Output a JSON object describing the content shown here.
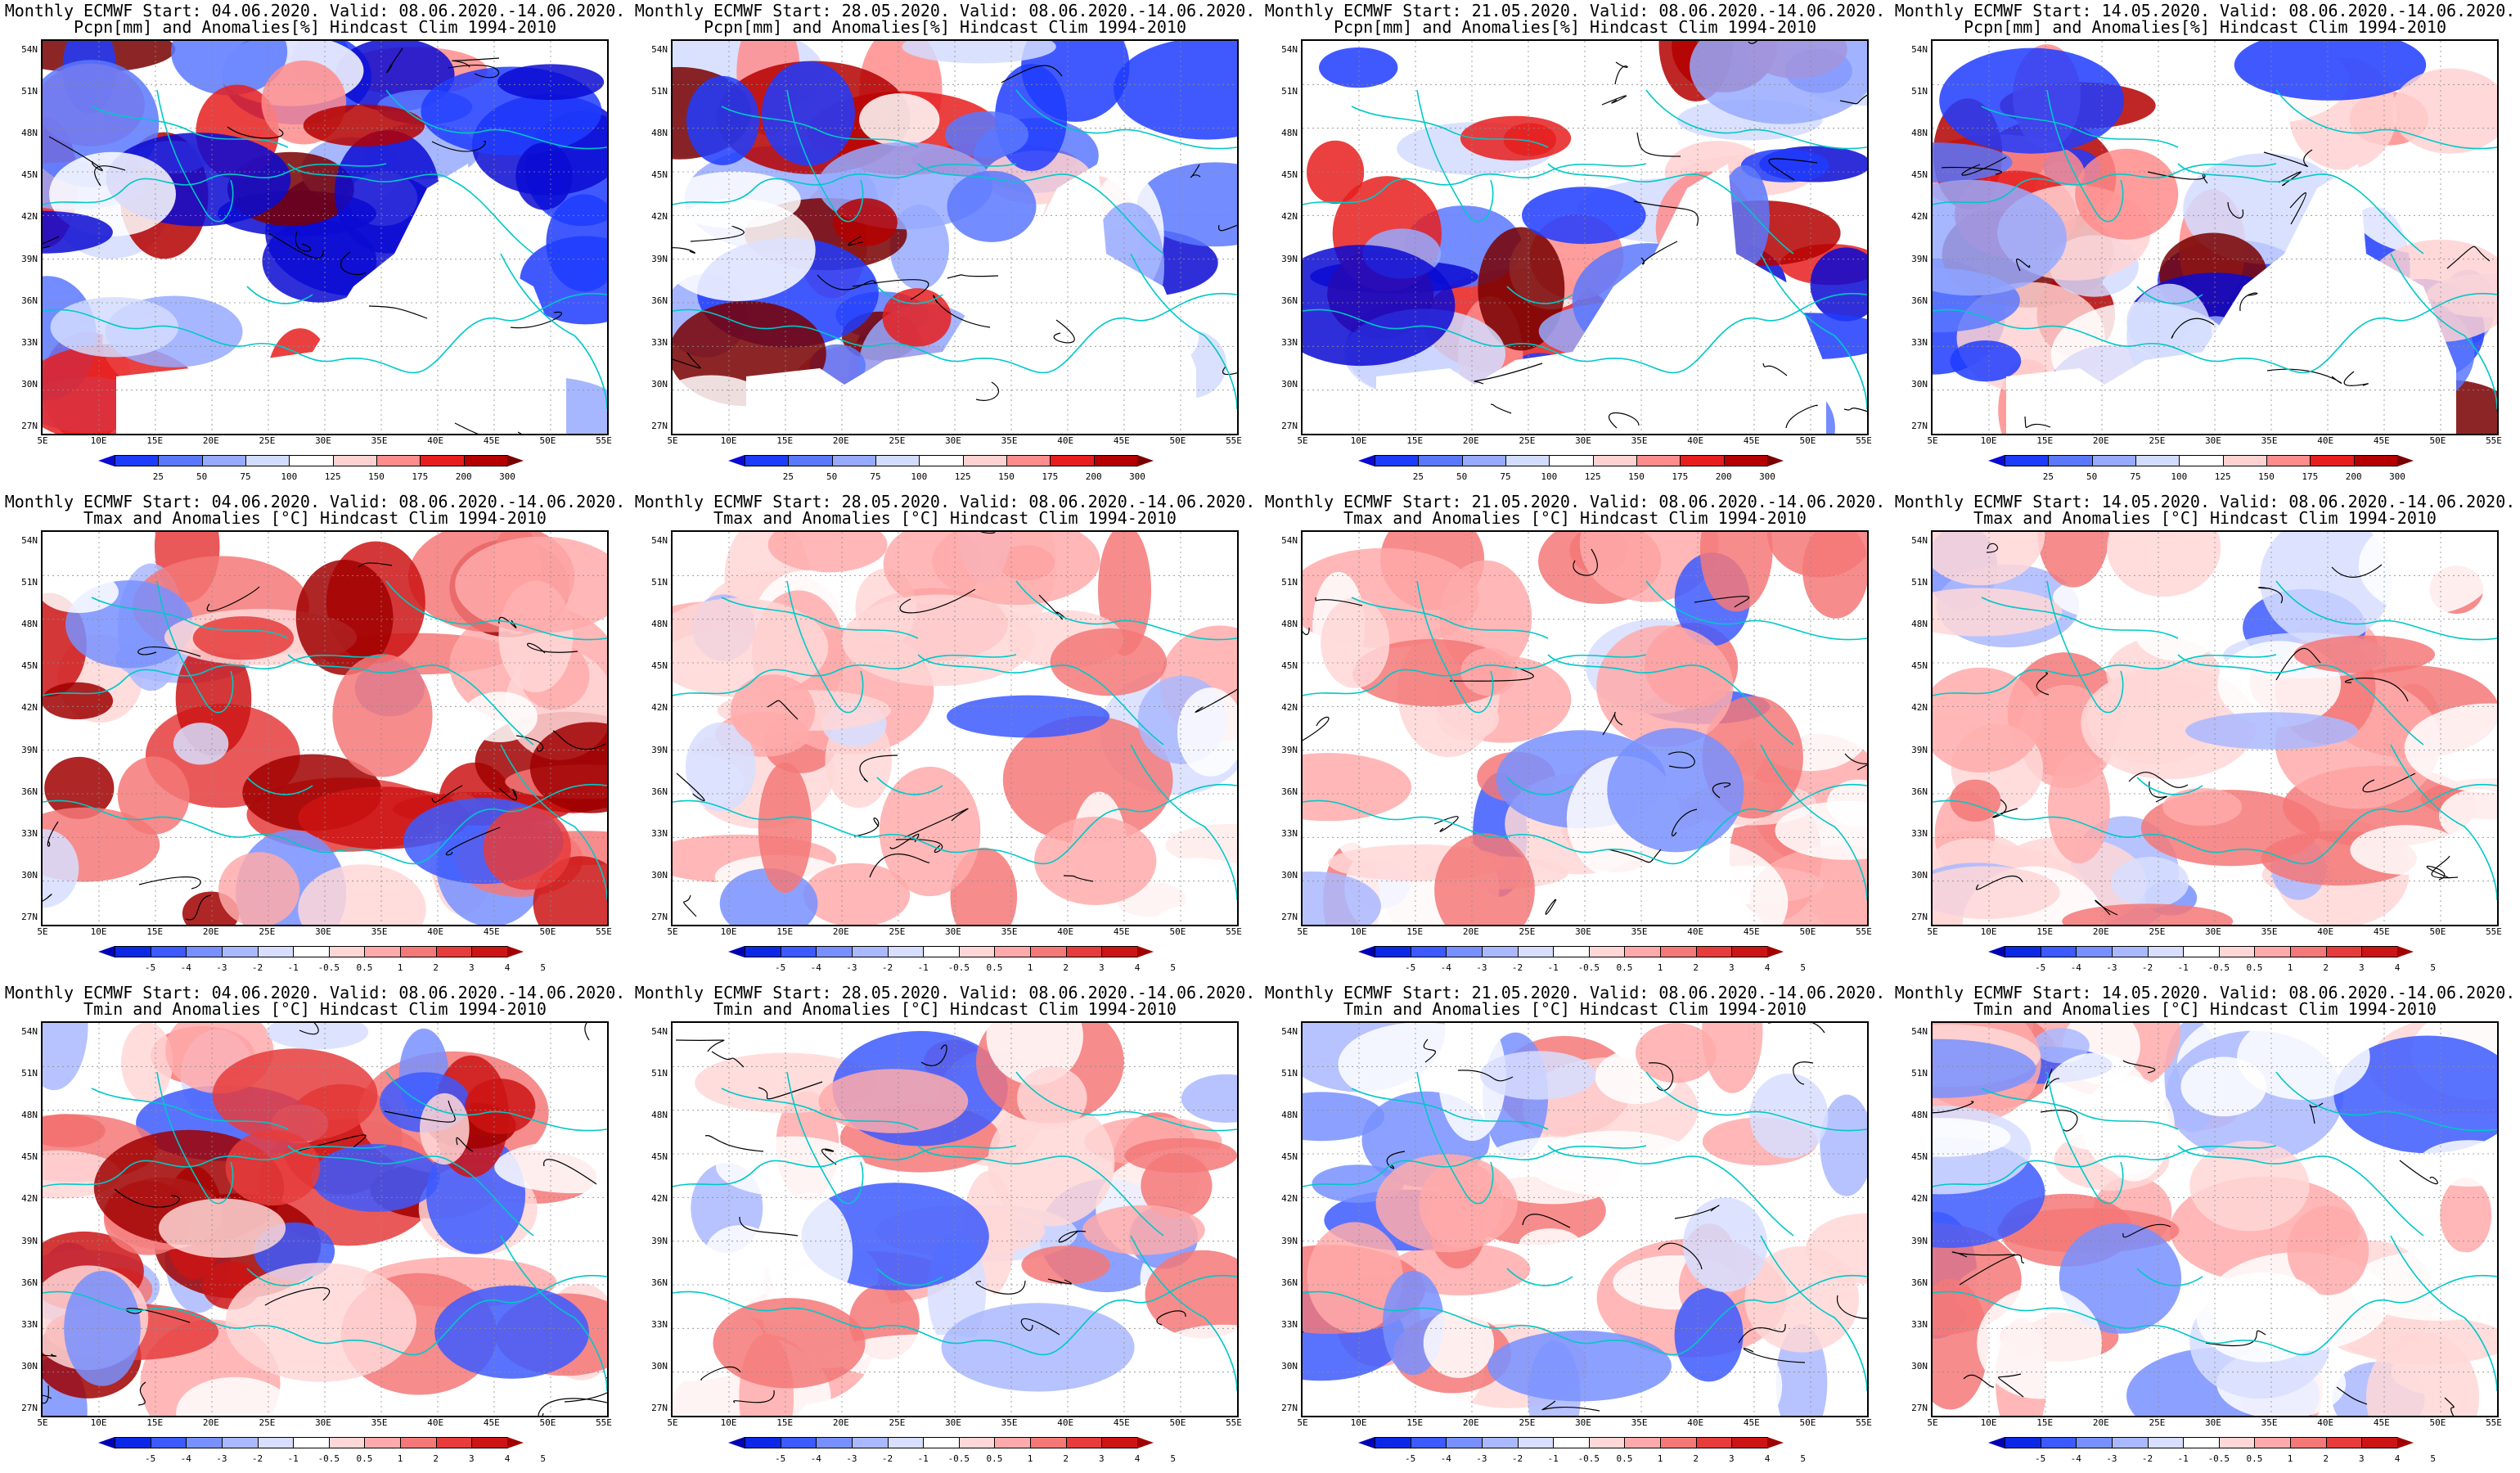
{
  "panels": [
    {
      "id": "pcpn-0406",
      "line1": "Monthly ECMWF Start: 04.06.2020. Valid: 08.06.2020.-14.06.2020.",
      "line2": "Pcpn[mm] and Anomalies[%] Hindcast Clim 1994-2010",
      "kind": "pcpn",
      "lats_north": "53",
      "warm": 0.1
    },
    {
      "id": "pcpn-2805",
      "line1": "Monthly ECMWF Start: 28.05.2020. Valid: 08.06.2020.-14.06.2020.",
      "line2": "Pcpn[mm] and Anomalies[%] Hindcast Clim 1994-2010",
      "kind": "pcpn",
      "warm": 0.3
    },
    {
      "id": "pcpn-2105",
      "line1": "Monthly ECMWF Start: 21.05.2020. Valid: 08.06.2020.-14.06.2020.",
      "line2": "Pcpn[mm] and Anomalies[%] Hindcast Clim 1994-2010",
      "kind": "pcpn",
      "warm": 0.2
    },
    {
      "id": "pcpn-1405",
      "line1": "Monthly ECMWF Start: 14.05.2020. Valid: 08.06.2020.-14.06.2020.",
      "line2": "Pcpn[mm] and Anomalies[%] Hindcast Clim 1994-2010",
      "kind": "pcpn",
      "warm": 0.5
    },
    {
      "id": "tmax-0406",
      "line1": "Monthly ECMWF Start: 04.06.2020. Valid: 08.06.2020.-14.06.2020.",
      "line2": "Tmax and Anomalies [°C] Hindcast Clim 1994-2010",
      "kind": "temp",
      "warm": 0.7
    },
    {
      "id": "tmax-2805",
      "line1": "Monthly ECMWF Start: 28.05.2020. Valid: 08.06.2020.-14.06.2020.",
      "line2": "Tmax and Anomalies [°C] Hindcast Clim 1994-2010",
      "kind": "temp",
      "warm": 0.45
    },
    {
      "id": "tmax-2105",
      "line1": "Monthly ECMWF Start: 21.05.2020. Valid: 08.06.2020.-14.06.2020.",
      "line2": "Tmax and Anomalies [°C] Hindcast Clim 1994-2010",
      "kind": "temp",
      "warm": 0.5
    },
    {
      "id": "tmax-1405",
      "line1": "Monthly ECMWF Start: 14.05.2020. Valid: 08.06.2020.-14.06.2020.",
      "line2": "Tmax and Anomalies [°C] Hindcast Clim 1994-2010",
      "kind": "temp",
      "warm": 0.6
    },
    {
      "id": "tmin-0406",
      "line1": "Monthly ECMWF Start: 04.06.2020. Valid: 08.06.2020.-14.06.2020.",
      "line2": "Tmin and Anomalies [°C] Hindcast Clim 1994-2010",
      "kind": "temp",
      "warm": 0.75
    },
    {
      "id": "tmin-2805",
      "line1": "Monthly ECMWF Start: 28.05.2020. Valid: 08.06.2020.-14.06.2020.",
      "line2": "Tmin and Anomalies [°C] Hindcast Clim 1994-2010",
      "kind": "temp",
      "warm": 0.4
    },
    {
      "id": "tmin-2105",
      "line1": "Monthly ECMWF Start: 21.05.2020. Valid: 08.06.2020.-14.06.2020.",
      "line2": "Tmin and Anomalies [°C] Hindcast Clim 1994-2010",
      "kind": "temp",
      "warm": 0.45
    },
    {
      "id": "tmin-1405",
      "line1": "Monthly ECMWF Start: 14.05.2020. Valid: 08.06.2020.-14.06.2020.",
      "line2": "Tmin and Anomalies [°C] Hindcast Clim 1994-2010",
      "kind": "temp",
      "warm": 0.5
    }
  ],
  "lat_labels": [
    "54N",
    "51N",
    "48N",
    "45N",
    "42N",
    "39N",
    "36N",
    "33N",
    "30N",
    "27N"
  ],
  "lon_labels": [
    "5E",
    "10E",
    "15E",
    "20E",
    "25E",
    "30E",
    "35E",
    "40E",
    "45E",
    "50E",
    "55E"
  ],
  "pcpn_scale": {
    "labels": [
      "25",
      "50",
      "75",
      "100",
      "125",
      "150",
      "175",
      "200",
      "300"
    ],
    "colors": [
      "#0a0ad2",
      "#1e3cff",
      "#5a78ff",
      "#96aaff",
      "#d2dcff",
      "#ffffff",
      "#ffd2d2",
      "#ff8c8c",
      "#e61e1e",
      "#b40000",
      "#780000"
    ]
  },
  "temp_scale": {
    "labels": [
      "-5",
      "-4",
      "-3",
      "-2",
      "-1",
      "-0.5",
      "0.5",
      "1",
      "2",
      "3",
      "4",
      "5"
    ],
    "colors": [
      "#0000b4",
      "#0a28e6",
      "#3c5aff",
      "#7890ff",
      "#aab9ff",
      "#d7deff",
      "#ffffff",
      "#ffd7d7",
      "#ffaaaa",
      "#f57878",
      "#e63c3c",
      "#cd1414",
      "#a00000"
    ]
  },
  "colors": {
    "coast": "#00c8c8",
    "contour": "#000000",
    "grid": "#8c8c8c",
    "no_data": "#ffffff"
  }
}
